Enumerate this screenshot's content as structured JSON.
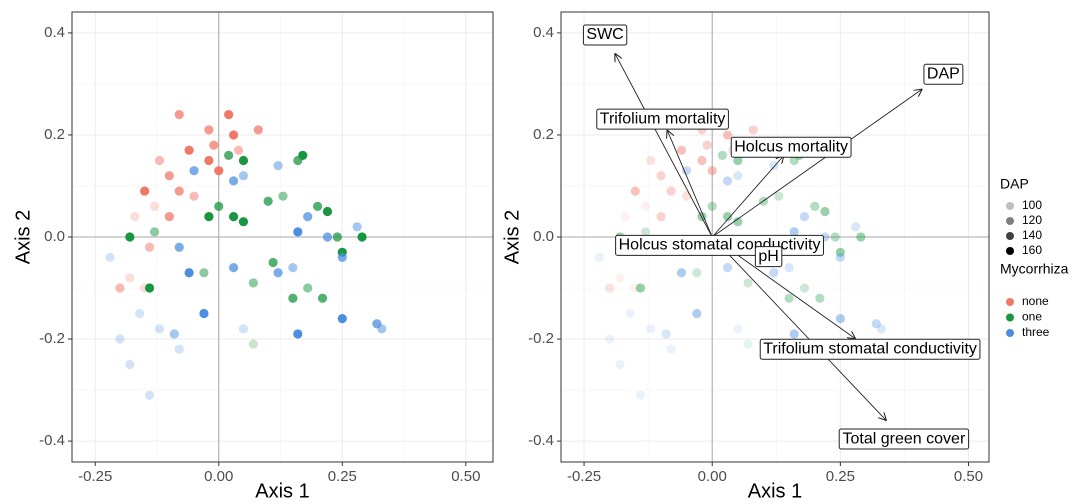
{
  "chart_data": [
    {
      "type": "scatter",
      "xlabel": "Axis 1",
      "ylabel": "Axis 2",
      "xlim": [
        -0.297,
        0.555
      ],
      "ylim": [
        -0.441,
        0.441
      ],
      "xticks": [
        -0.25,
        {
          "value": 0,
          "label": "0.00"
        },
        0.25,
        {
          "value": 0.5,
          "label": "0.50"
        }
      ],
      "yticks": [
        0.4,
        0.2,
        {
          "value": 0,
          "label": "0.0"
        },
        -0.2,
        -0.4
      ],
      "grid": true,
      "ref_lines": {
        "x": 0,
        "y": 0
      },
      "marker_alpha": 1,
      "series": [
        {
          "name": "none",
          "color": "#f07868",
          "x": [
            -0.08,
            0.02,
            -0.02,
            0.03,
            0.08,
            -0.12,
            -0.06,
            -0.01,
            0.04,
            -0.1,
            -0.15,
            -0.08,
            -0.13,
            -0.05,
            -0.02,
            -0.17,
            -0.14,
            -0.18,
            -0.2,
            -0.15,
            -0.1,
            0.0
          ],
          "values": [
            0.24,
            0.24,
            0.21,
            0.2,
            0.21,
            0.15,
            0.17,
            0.18,
            0.17,
            0.12,
            0.09,
            0.09,
            0.06,
            0.08,
            0.15,
            0.04,
            -0.02,
            -0.08,
            -0.1,
            -0.1,
            0.04,
            0.13
          ],
          "dap": [
            140,
            160,
            140,
            160,
            140,
            120,
            160,
            140,
            120,
            140,
            160,
            140,
            100,
            120,
            160,
            100,
            120,
            100,
            120,
            100,
            140,
            160
          ]
        },
        {
          "name": "one",
          "color": "#1a9641",
          "x": [
            0.17,
            0.16,
            0.05,
            0.13,
            0.1,
            -0.18,
            -0.13,
            -0.02,
            0.0,
            0.03,
            0.05,
            0.2,
            0.22,
            0.24,
            0.29,
            0.25,
            0.11,
            0.07,
            0.15,
            0.18,
            0.21,
            -0.14,
            0.02,
            0.07,
            -0.03
          ],
          "values": [
            0.16,
            0.15,
            0.15,
            0.08,
            0.07,
            0.0,
            0.01,
            0.04,
            0.06,
            0.04,
            0.03,
            0.06,
            0.05,
            0.0,
            0.0,
            -0.03,
            -0.05,
            -0.09,
            -0.12,
            -0.1,
            -0.12,
            -0.1,
            0.16,
            -0.21,
            -0.07
          ],
          "dap": [
            160,
            140,
            160,
            120,
            140,
            160,
            120,
            160,
            140,
            160,
            160,
            140,
            160,
            140,
            160,
            160,
            140,
            120,
            140,
            120,
            140,
            160,
            140,
            100,
            120
          ]
        },
        {
          "name": "three",
          "color": "#4c8fe0",
          "x": [
            -0.05,
            0.05,
            0.03,
            0.12,
            0.18,
            0.16,
            0.22,
            0.28,
            -0.08,
            -0.06,
            0.03,
            0.12,
            0.15,
            0.25,
            -0.22,
            -0.2,
            -0.16,
            -0.12,
            -0.09,
            -0.03,
            0.05,
            0.25,
            0.32,
            0.33,
            -0.14,
            -0.18,
            -0.08,
            0.16
          ],
          "values": [
            0.13,
            0.12,
            0.11,
            0.14,
            0.04,
            0.01,
            0.0,
            0.02,
            -0.02,
            -0.07,
            -0.06,
            -0.07,
            -0.06,
            -0.04,
            -0.04,
            -0.2,
            -0.15,
            -0.18,
            -0.19,
            -0.15,
            -0.18,
            -0.16,
            -0.17,
            -0.18,
            -0.31,
            -0.25,
            -0.22,
            -0.19
          ],
          "dap": [
            140,
            120,
            140,
            120,
            140,
            160,
            140,
            120,
            140,
            160,
            140,
            140,
            120,
            140,
            100,
            100,
            100,
            100,
            120,
            160,
            100,
            160,
            140,
            120,
            100,
            100,
            100,
            160
          ]
        }
      ]
    },
    {
      "type": "biplot",
      "xlabel": "Axis 1",
      "ylabel": "Axis 2",
      "xlim": [
        -0.295,
        0.54
      ],
      "ylim": [
        -0.441,
        0.441
      ],
      "xticks": [
        -0.25,
        {
          "value": 0,
          "label": "0.00"
        },
        0.25,
        {
          "value": 0.5,
          "label": "0.50"
        }
      ],
      "yticks": [
        0.4,
        0.2,
        {
          "value": 0,
          "label": "0.0"
        },
        -0.2,
        -0.4
      ],
      "grid": true,
      "ref_lines": {
        "x": 0,
        "y": 0
      },
      "marker_alpha": 0.45,
      "legend": {
        "dap_title": "DAP",
        "dap_levels": [
          100,
          120,
          140,
          160
        ],
        "color_title": "Mycorrhiza"
      },
      "arrows": [
        {
          "label": "SWC",
          "x": -0.19,
          "y": 0.36
        },
        {
          "label": "DAP",
          "x": 0.41,
          "y": 0.29
        },
        {
          "label": "Trifolium mortality",
          "x": -0.088,
          "y": 0.21
        },
        {
          "label": "Holcus mortality",
          "x": 0.14,
          "y": 0.16
        },
        {
          "label": "Holcus stomatal conductivity",
          "x": 0.013,
          "y": -0.015
        },
        {
          "label": "pH",
          "x": 0.1,
          "y": -0.035
        },
        {
          "label": "Trifolium stomatal conductivity",
          "x": 0.28,
          "y": -0.2
        },
        {
          "label": "Total green cover",
          "x": 0.34,
          "y": -0.36
        }
      ],
      "series": [
        {
          "name": "none",
          "color": "#f07868",
          "x": [
            -0.08,
            0.02,
            -0.02,
            0.03,
            0.08,
            -0.12,
            -0.06,
            -0.01,
            0.04,
            -0.1,
            -0.15,
            -0.08,
            -0.13,
            -0.05,
            -0.02,
            -0.17,
            -0.14,
            -0.18,
            -0.2,
            -0.15,
            -0.1,
            0.0
          ],
          "values": [
            0.24,
            0.24,
            0.21,
            0.2,
            0.21,
            0.15,
            0.17,
            0.18,
            0.17,
            0.12,
            0.09,
            0.09,
            0.06,
            0.08,
            0.15,
            0.04,
            -0.02,
            -0.08,
            -0.1,
            -0.1,
            0.04,
            0.13
          ],
          "dap": [
            140,
            160,
            140,
            160,
            140,
            120,
            160,
            140,
            120,
            140,
            160,
            140,
            100,
            120,
            160,
            100,
            120,
            100,
            120,
            100,
            140,
            160
          ]
        },
        {
          "name": "one",
          "color": "#1a9641",
          "x": [
            0.17,
            0.16,
            0.05,
            0.13,
            0.1,
            -0.18,
            -0.13,
            -0.02,
            0.0,
            0.03,
            0.05,
            0.2,
            0.22,
            0.24,
            0.29,
            0.25,
            0.11,
            0.07,
            0.15,
            0.18,
            0.21,
            -0.14,
            0.02,
            0.07,
            -0.03
          ],
          "values": [
            0.16,
            0.15,
            0.15,
            0.08,
            0.07,
            0.0,
            0.01,
            0.04,
            0.06,
            0.04,
            0.03,
            0.06,
            0.05,
            0.0,
            0.0,
            -0.03,
            -0.05,
            -0.09,
            -0.12,
            -0.1,
            -0.12,
            -0.1,
            0.16,
            -0.21,
            -0.07
          ],
          "dap": [
            160,
            140,
            160,
            120,
            140,
            160,
            120,
            160,
            140,
            160,
            160,
            140,
            160,
            140,
            160,
            160,
            140,
            120,
            140,
            120,
            140,
            160,
            140,
            100,
            120
          ]
        },
        {
          "name": "three",
          "color": "#4c8fe0",
          "x": [
            -0.05,
            0.05,
            0.03,
            0.12,
            0.18,
            0.16,
            0.22,
            0.28,
            -0.08,
            -0.06,
            0.03,
            0.12,
            0.15,
            0.25,
            -0.22,
            -0.2,
            -0.16,
            -0.12,
            -0.09,
            -0.03,
            0.05,
            0.25,
            0.32,
            0.33,
            -0.14,
            -0.18,
            -0.08,
            0.16
          ],
          "values": [
            0.13,
            0.12,
            0.11,
            0.14,
            0.04,
            0.01,
            0.0,
            0.02,
            -0.02,
            -0.07,
            -0.06,
            -0.07,
            -0.06,
            -0.04,
            -0.04,
            -0.2,
            -0.15,
            -0.18,
            -0.19,
            -0.15,
            -0.18,
            -0.16,
            -0.17,
            -0.18,
            -0.31,
            -0.25,
            -0.22,
            -0.19
          ],
          "dap": [
            140,
            120,
            140,
            120,
            140,
            160,
            140,
            120,
            140,
            160,
            140,
            140,
            120,
            140,
            100,
            100,
            100,
            100,
            120,
            160,
            100,
            160,
            140,
            120,
            100,
            100,
            100,
            160
          ]
        }
      ]
    }
  ]
}
